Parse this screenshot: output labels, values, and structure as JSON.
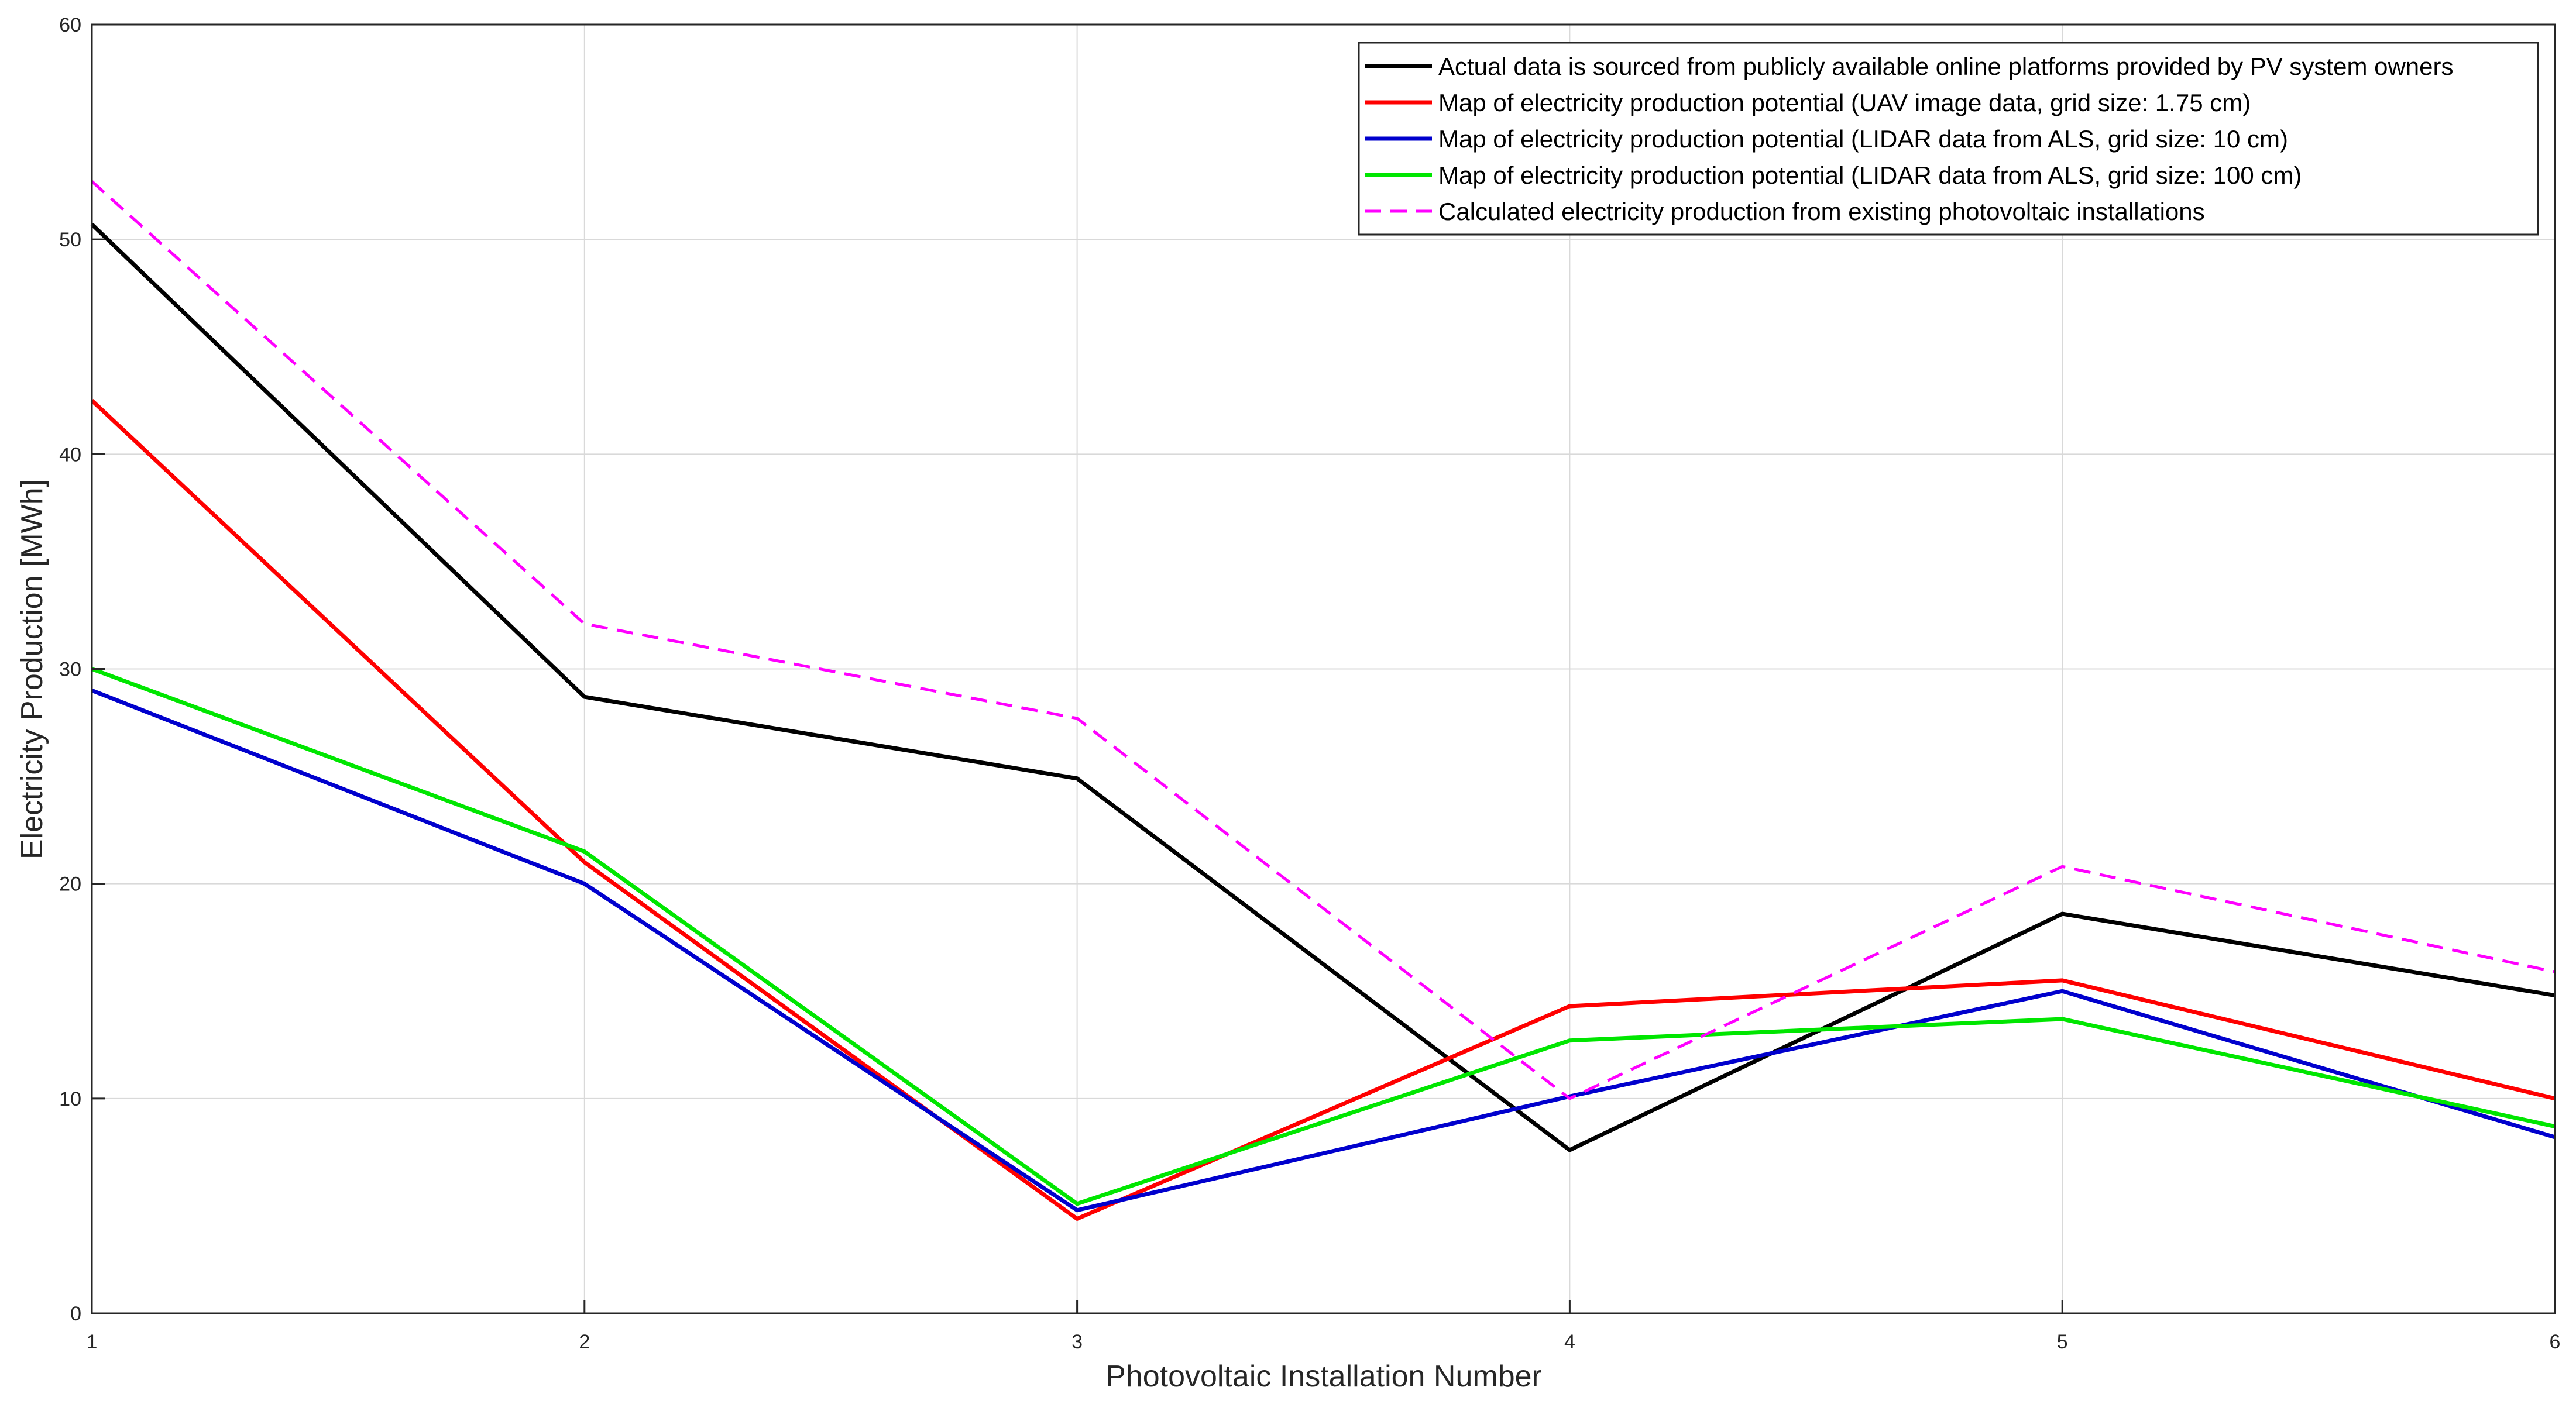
{
  "chart_data": {
    "type": "line",
    "title": "",
    "xlabel": "Photovoltaic Installation Number",
    "ylabel": "Electricity Production [MWh]",
    "xlim": [
      1,
      6
    ],
    "ylim": [
      0,
      60
    ],
    "grid": true,
    "x": [
      1,
      2,
      3,
      4,
      5,
      6
    ],
    "xticks": [
      1,
      2,
      3,
      4,
      5,
      6
    ],
    "yticks": [
      0,
      10,
      20,
      30,
      40,
      50,
      60
    ],
    "legend_position": "top-right",
    "series": [
      {
        "name": "Actual data is sourced from publicly available online platforms provided by PV system owners",
        "color": "#000000",
        "dash": "solid",
        "values": [
          50.7,
          28.7,
          24.9,
          7.6,
          18.6,
          14.8
        ]
      },
      {
        "name": "Map of electricity production potential (UAV image data, grid size: 1.75 cm)",
        "color": "#ff0000",
        "dash": "solid",
        "values": [
          42.5,
          21.0,
          4.4,
          14.3,
          15.5,
          10.0
        ]
      },
      {
        "name": "Map of electricity production potential (LIDAR data from ALS, grid size: 10 cm)",
        "color": "#0000cd",
        "dash": "solid",
        "values": [
          29.0,
          20.0,
          4.8,
          10.1,
          15.0,
          8.2
        ]
      },
      {
        "name": "Map of electricity production potential (LIDAR data from ALS, grid size: 100 cm)",
        "color": "#00e600",
        "dash": "solid",
        "values": [
          30.0,
          21.5,
          5.1,
          12.7,
          13.7,
          8.7
        ]
      },
      {
        "name": "Calculated electricity production from existing photovoltaic installations",
        "color": "#ff00ff",
        "dash": "dashed",
        "values": [
          52.7,
          32.1,
          27.7,
          10.0,
          20.8,
          15.9
        ]
      }
    ]
  }
}
